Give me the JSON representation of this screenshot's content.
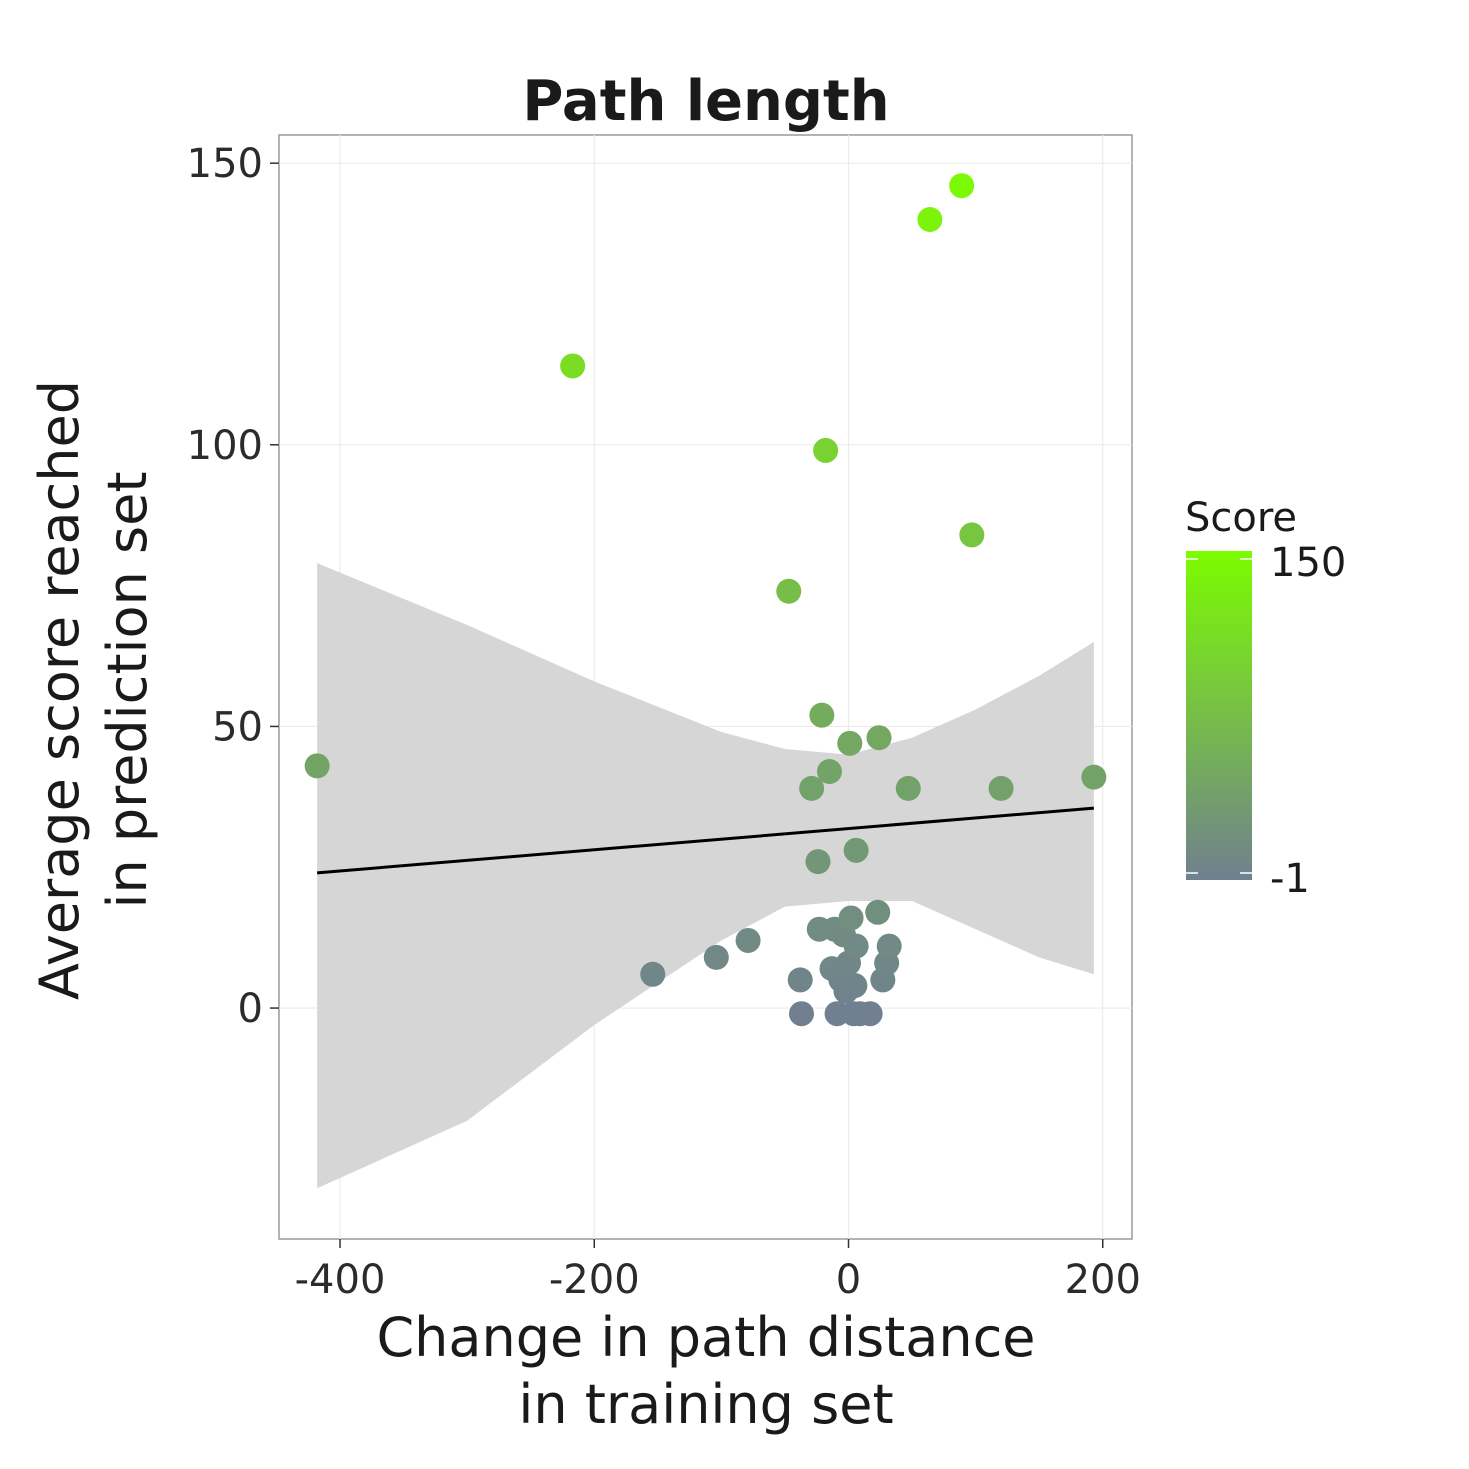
{
  "chart_data": {
    "type": "scatter",
    "title": "Path length",
    "xlabel_lines": [
      "Change in path distance",
      "in training set"
    ],
    "ylabel_lines": [
      "Average score reached",
      "in prediction set"
    ],
    "xlim": [
      -448,
      223
    ],
    "ylim": [
      -41,
      155
    ],
    "x_ticks": [
      -400,
      -200,
      0,
      200
    ],
    "x_tick_labels": [
      "-400",
      "-200",
      "0",
      "200"
    ],
    "y_ticks": [
      0,
      50,
      100,
      150
    ],
    "y_tick_labels": [
      "0",
      "50",
      "100",
      "150"
    ],
    "grid": true,
    "legend": {
      "title": "Score",
      "placement": "right",
      "min": -1,
      "max": 150,
      "min_label": "-1",
      "max_label": "150",
      "low_color": "#708090",
      "high_color": "#7cfc00"
    },
    "points": [
      {
        "x": -418,
        "y": 43
      },
      {
        "x": -217,
        "y": 114
      },
      {
        "x": -154,
        "y": 6
      },
      {
        "x": -104,
        "y": 9
      },
      {
        "x": -79,
        "y": 12
      },
      {
        "x": -47,
        "y": 74
      },
      {
        "x": -38,
        "y": 5
      },
      {
        "x": -37,
        "y": -1
      },
      {
        "x": -29,
        "y": 39
      },
      {
        "x": -24,
        "y": 26
      },
      {
        "x": -23,
        "y": 14
      },
      {
        "x": -21,
        "y": 52
      },
      {
        "x": -18,
        "y": 99
      },
      {
        "x": -15,
        "y": 42
      },
      {
        "x": -13,
        "y": 7
      },
      {
        "x": -11,
        "y": 14
      },
      {
        "x": -9,
        "y": -1
      },
      {
        "x": -6,
        "y": 5
      },
      {
        "x": -4,
        "y": 13
      },
      {
        "x": -2,
        "y": 3
      },
      {
        "x": 0,
        "y": 8
      },
      {
        "x": 1,
        "y": 47
      },
      {
        "x": 2,
        "y": 16
      },
      {
        "x": 4,
        "y": -1
      },
      {
        "x": 5,
        "y": 4
      },
      {
        "x": 6,
        "y": 11
      },
      {
        "x": 6,
        "y": 28
      },
      {
        "x": 9,
        "y": -1
      },
      {
        "x": 17,
        "y": -1
      },
      {
        "x": 23,
        "y": 17
      },
      {
        "x": 24,
        "y": 48
      },
      {
        "x": 27,
        "y": 5
      },
      {
        "x": 30,
        "y": 8
      },
      {
        "x": 32,
        "y": 11
      },
      {
        "x": 47,
        "y": 39
      },
      {
        "x": 64,
        "y": 140
      },
      {
        "x": 89,
        "y": 146
      },
      {
        "x": 97,
        "y": 84
      },
      {
        "x": 120,
        "y": 39
      },
      {
        "x": 193,
        "y": 41
      }
    ],
    "fit_line": {
      "x": [
        -418,
        193
      ],
      "y": [
        24,
        35.5
      ]
    },
    "confidence_band": {
      "x": [
        -418,
        -300,
        -200,
        -100,
        -50,
        0,
        50,
        100,
        150,
        193
      ],
      "upper": [
        79,
        68,
        58,
        49,
        46,
        45,
        48,
        53,
        59,
        65
      ],
      "lower": [
        -32,
        -20,
        -3,
        12,
        18,
        19,
        19,
        14,
        9,
        6
      ]
    }
  }
}
